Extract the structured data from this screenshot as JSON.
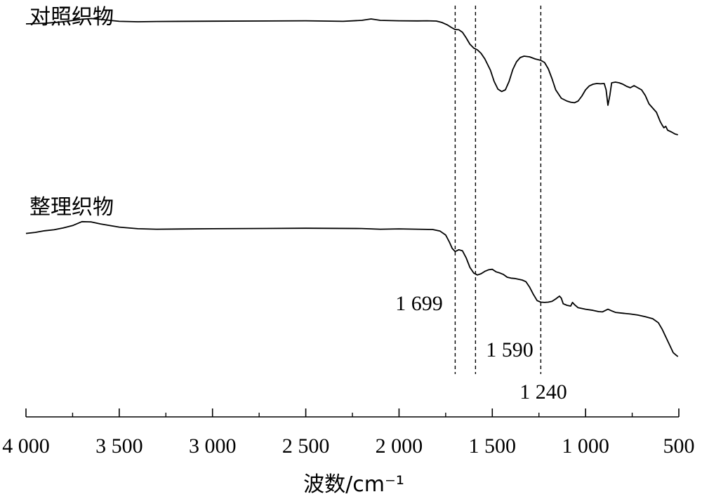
{
  "chart_data": {
    "type": "line",
    "xlabel": "波数/cm⁻¹",
    "xlim": [
      4000,
      500
    ],
    "x_reversed": true,
    "x_ticks": [
      {
        "value": 4000,
        "label": "4 000"
      },
      {
        "value": 3500,
        "label": "3 500"
      },
      {
        "value": 3000,
        "label": "3 000"
      },
      {
        "value": 2500,
        "label": "2 500"
      },
      {
        "value": 2000,
        "label": "2 000"
      },
      {
        "value": 1500,
        "label": "1 500"
      },
      {
        "value": 1000,
        "label": "1 000"
      },
      {
        "value": 500,
        "label": "500"
      }
    ],
    "grid": false,
    "y_axis_shown": false,
    "reference_lines": [
      {
        "x": 1699,
        "label": "1 699",
        "style": "dashed"
      },
      {
        "x": 1590,
        "label": "1 590",
        "style": "dashed"
      },
      {
        "x": 1240,
        "label": "1 240",
        "style": "dashed"
      }
    ],
    "series": [
      {
        "name": "对照织物",
        "color": "#000000",
        "points": [
          [
            4000,
            0.93
          ],
          [
            3900,
            0.934
          ],
          [
            3800,
            0.945
          ],
          [
            3700,
            0.963
          ],
          [
            3650,
            0.968
          ],
          [
            3600,
            0.962
          ],
          [
            3500,
            0.948
          ],
          [
            3400,
            0.945
          ],
          [
            3300,
            0.947
          ],
          [
            3000,
            0.949
          ],
          [
            2500,
            0.952
          ],
          [
            2300,
            0.948
          ],
          [
            2200,
            0.955
          ],
          [
            2150,
            0.965
          ],
          [
            2100,
            0.955
          ],
          [
            2000,
            0.952
          ],
          [
            1900,
            0.951
          ],
          [
            1850,
            0.952
          ],
          [
            1800,
            0.95
          ],
          [
            1770,
            0.94
          ],
          [
            1740,
            0.922
          ],
          [
            1720,
            0.905
          ],
          [
            1700,
            0.89
          ],
          [
            1680,
            0.888
          ],
          [
            1660,
            0.87
          ],
          [
            1640,
            0.83
          ],
          [
            1620,
            0.785
          ],
          [
            1600,
            0.758
          ],
          [
            1580,
            0.745
          ],
          [
            1560,
            0.72
          ],
          [
            1540,
            0.68
          ],
          [
            1510,
            0.6
          ],
          [
            1490,
            0.52
          ],
          [
            1470,
            0.465
          ],
          [
            1450,
            0.448
          ],
          [
            1430,
            0.46
          ],
          [
            1410,
            0.52
          ],
          [
            1390,
            0.605
          ],
          [
            1370,
            0.66
          ],
          [
            1350,
            0.69
          ],
          [
            1330,
            0.7
          ],
          [
            1300,
            0.695
          ],
          [
            1270,
            0.68
          ],
          [
            1240,
            0.67
          ],
          [
            1220,
            0.655
          ],
          [
            1200,
            0.61
          ],
          [
            1180,
            0.54
          ],
          [
            1160,
            0.46
          ],
          [
            1130,
            0.4
          ],
          [
            1100,
            0.38
          ],
          [
            1080,
            0.372
          ],
          [
            1060,
            0.368
          ],
          [
            1040,
            0.38
          ],
          [
            1020,
            0.415
          ],
          [
            1000,
            0.46
          ],
          [
            980,
            0.488
          ],
          [
            960,
            0.5
          ],
          [
            940,
            0.505
          ],
          [
            920,
            0.503
          ],
          [
            900,
            0.505
          ],
          [
            890,
            0.46
          ],
          [
            880,
            0.35
          ],
          [
            870,
            0.42
          ],
          [
            860,
            0.51
          ],
          [
            840,
            0.515
          ],
          [
            820,
            0.51
          ],
          [
            800,
            0.5
          ],
          [
            780,
            0.485
          ],
          [
            760,
            0.475
          ],
          [
            740,
            0.49
          ],
          [
            720,
            0.475
          ],
          [
            700,
            0.46
          ],
          [
            680,
            0.42
          ],
          [
            660,
            0.36
          ],
          [
            640,
            0.33
          ],
          [
            620,
            0.3
          ],
          [
            600,
            0.235
          ],
          [
            590,
            0.21
          ],
          [
            580,
            0.19
          ],
          [
            570,
            0.2
          ],
          [
            560,
            0.172
          ],
          [
            540,
            0.16
          ],
          [
            520,
            0.145
          ],
          [
            505,
            0.14
          ]
        ]
      },
      {
        "name": "整理织物",
        "color": "#000000",
        "points": [
          [
            4000,
            0.855
          ],
          [
            3950,
            0.862
          ],
          [
            3900,
            0.872
          ],
          [
            3850,
            0.878
          ],
          [
            3800,
            0.89
          ],
          [
            3750,
            0.905
          ],
          [
            3700,
            0.93
          ],
          [
            3650,
            0.928
          ],
          [
            3600,
            0.915
          ],
          [
            3500,
            0.895
          ],
          [
            3400,
            0.885
          ],
          [
            3300,
            0.882
          ],
          [
            3000,
            0.885
          ],
          [
            2500,
            0.888
          ],
          [
            2200,
            0.886
          ],
          [
            2100,
            0.882
          ],
          [
            2000,
            0.884
          ],
          [
            1900,
            0.882
          ],
          [
            1820,
            0.88
          ],
          [
            1780,
            0.87
          ],
          [
            1750,
            0.845
          ],
          [
            1730,
            0.8
          ],
          [
            1715,
            0.76
          ],
          [
            1699,
            0.74
          ],
          [
            1680,
            0.752
          ],
          [
            1660,
            0.745
          ],
          [
            1640,
            0.7
          ],
          [
            1620,
            0.64
          ],
          [
            1600,
            0.605
          ],
          [
            1580,
            0.592
          ],
          [
            1560,
            0.6
          ],
          [
            1540,
            0.615
          ],
          [
            1520,
            0.625
          ],
          [
            1500,
            0.628
          ],
          [
            1480,
            0.612
          ],
          [
            1460,
            0.605
          ],
          [
            1440,
            0.595
          ],
          [
            1420,
            0.578
          ],
          [
            1400,
            0.572
          ],
          [
            1380,
            0.57
          ],
          [
            1360,
            0.565
          ],
          [
            1340,
            0.56
          ],
          [
            1320,
            0.55
          ],
          [
            1300,
            0.515
          ],
          [
            1280,
            0.47
          ],
          [
            1260,
            0.43
          ],
          [
            1240,
            0.42
          ],
          [
            1220,
            0.418
          ],
          [
            1200,
            0.42
          ],
          [
            1180,
            0.425
          ],
          [
            1160,
            0.44
          ],
          [
            1140,
            0.458
          ],
          [
            1130,
            0.445
          ],
          [
            1120,
            0.41
          ],
          [
            1100,
            0.4
          ],
          [
            1080,
            0.395
          ],
          [
            1070,
            0.418
          ],
          [
            1060,
            0.405
          ],
          [
            1040,
            0.385
          ],
          [
            1000,
            0.375
          ],
          [
            960,
            0.368
          ],
          [
            930,
            0.36
          ],
          [
            910,
            0.358
          ],
          [
            880,
            0.375
          ],
          [
            860,
            0.365
          ],
          [
            840,
            0.355
          ],
          [
            800,
            0.35
          ],
          [
            760,
            0.345
          ],
          [
            720,
            0.338
          ],
          [
            680,
            0.328
          ],
          [
            640,
            0.315
          ],
          [
            610,
            0.29
          ],
          [
            590,
            0.25
          ],
          [
            570,
            0.2
          ],
          [
            550,
            0.15
          ],
          [
            530,
            0.1
          ],
          [
            515,
            0.085
          ],
          [
            505,
            0.075
          ]
        ]
      }
    ]
  }
}
